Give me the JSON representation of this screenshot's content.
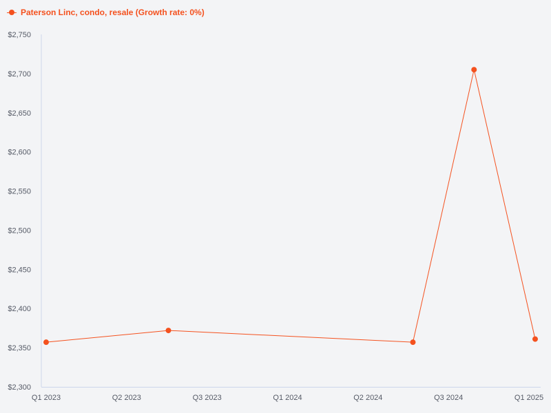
{
  "legend": {
    "label": "Paterson Linc, condo, resale (Growth rate: 0%)",
    "color": "#f4511e"
  },
  "chart_data": {
    "type": "line",
    "title": "",
    "xlabel": "",
    "ylabel": "",
    "x_tick_labels": [
      "Q1 2023",
      "Q2 2023",
      "Q3 2023",
      "Q1 2024",
      "Q2 2024",
      "Q3 2024",
      "Q1 2025"
    ],
    "y_tick_labels": [
      "$2,300",
      "$2,350",
      "$2,400",
      "$2,450",
      "$2,500",
      "$2,550",
      "$2,600",
      "$2,650",
      "$2,700",
      "$2,750"
    ],
    "ylim": [
      2300,
      2750
    ],
    "grid": false,
    "legend_position": "top-left",
    "series": [
      {
        "name": "Paterson Linc, condo, resale (Growth rate: 0%)",
        "color": "#f4511e",
        "points": [
          {
            "x": "Q1 2023",
            "y": 2357
          },
          {
            "x": "Q3 2023",
            "y": 2372
          },
          {
            "x": "Q3 2024",
            "y": 2357
          },
          {
            "x": "Q4 2024",
            "y": 2705
          },
          {
            "x": "Q1 2025",
            "y": 2361
          }
        ]
      }
    ]
  }
}
